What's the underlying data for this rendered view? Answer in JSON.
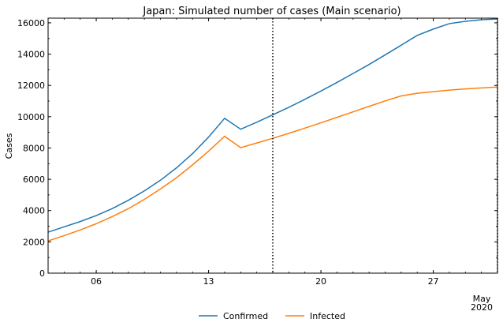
{
  "chart_data": {
    "type": "line",
    "title": "Japan: Simulated number of cases (Main scenario)",
    "xlabel": "",
    "ylabel": "Cases",
    "x_start": "2020-04-03",
    "x_end": "2020-05-01",
    "ylim": [
      0,
      16300
    ],
    "y_ticks": [
      0,
      2000,
      4000,
      6000,
      8000,
      10000,
      12000,
      14000,
      16000
    ],
    "x_ticks": [
      {
        "date": "2020-04-06",
        "label": "06"
      },
      {
        "date": "2020-04-13",
        "label": "13"
      },
      {
        "date": "2020-04-20",
        "label": "20"
      },
      {
        "date": "2020-04-27",
        "label": "27"
      },
      {
        "date": "2020-05-01",
        "label": "May",
        "label2": "2020"
      }
    ],
    "vlines": [
      "2020-04-17",
      "2020-05-01"
    ],
    "grid": false,
    "legend_position": "bottom-center",
    "x": [
      "2020-04-03",
      "2020-04-04",
      "2020-04-05",
      "2020-04-06",
      "2020-04-07",
      "2020-04-08",
      "2020-04-09",
      "2020-04-10",
      "2020-04-11",
      "2020-04-12",
      "2020-04-13",
      "2020-04-14",
      "2020-04-15",
      "2020-04-16",
      "2020-04-17",
      "2020-04-18",
      "2020-04-19",
      "2020-04-20",
      "2020-04-21",
      "2020-04-22",
      "2020-04-23",
      "2020-04-24",
      "2020-04-25",
      "2020-04-26",
      "2020-04-27",
      "2020-04-28",
      "2020-04-29",
      "2020-04-30",
      "2020-05-01"
    ],
    "series": [
      {
        "name": "Confirmed",
        "color": "#1f77b4",
        "values": [
          2620,
          2960,
          3300,
          3680,
          4130,
          4660,
          5260,
          5940,
          6730,
          7640,
          8700,
          9900,
          9200,
          9650,
          10120,
          10600,
          11110,
          11640,
          12190,
          12760,
          13340,
          13950,
          14570,
          15200,
          15600,
          15950,
          16100,
          16200,
          16250
        ]
      },
      {
        "name": "Infected",
        "color": "#ff7f0e",
        "values": [
          2060,
          2400,
          2760,
          3160,
          3620,
          4120,
          4720,
          5380,
          6100,
          6920,
          7800,
          8750,
          8020,
          8320,
          8620,
          8940,
          9270,
          9610,
          9960,
          10310,
          10660,
          11010,
          11330,
          11500,
          11600,
          11700,
          11780,
          11840,
          11900
        ]
      }
    ]
  }
}
